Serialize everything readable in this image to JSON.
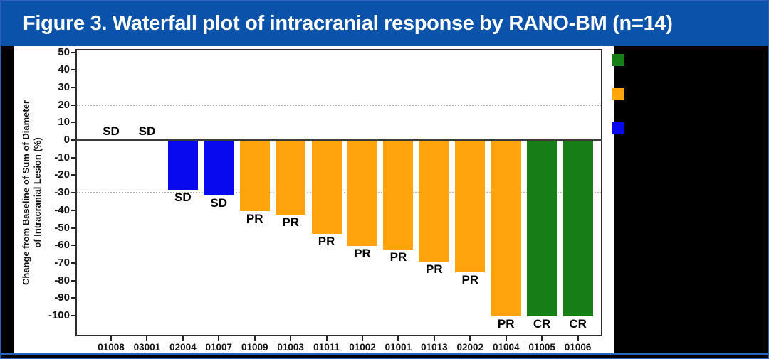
{
  "chart_data": {
    "type": "bar",
    "title": "Figure 3. Waterfall plot of intracranial response by RANO-BM (n=14)",
    "ylabel": "Change from Baseline of Sum of Diameter of Intracranial Lesion (%)",
    "ylabel_lines": [
      "Change from Baseline of Sum of Diameter",
      "of Intracranial Lesion (%)"
    ],
    "xlabel": "",
    "categories": [
      "01008",
      "03001",
      "02004",
      "01007",
      "01009",
      "01003",
      "01011",
      "01002",
      "01001",
      "01013",
      "02002",
      "01004",
      "01005",
      "01006"
    ],
    "values": [
      0,
      0,
      -28,
      -31,
      -40,
      -42,
      -53,
      -60,
      -62,
      -69,
      -75,
      -100,
      -100,
      -100
    ],
    "bar_labels": [
      "SD",
      "SD",
      "SD",
      "SD",
      "PR",
      "PR",
      "PR",
      "PR",
      "PR",
      "PR",
      "PR",
      "PR",
      "CR",
      "CR"
    ],
    "response_colors": {
      "SD": "#0909ef",
      "PR": "#ffa40d",
      "CR": "#177d17"
    },
    "y_ticks": [
      50,
      40,
      30,
      20,
      10,
      0,
      -10,
      -20,
      -30,
      -40,
      -50,
      -60,
      -70,
      -80,
      -90,
      -100
    ],
    "reference_lines_dotted": [
      20,
      -30
    ],
    "ylim": [
      -111.7,
      51.8
    ],
    "grid": "horizontal dotted reference lines at 20 and -30 only",
    "legend_position": "right, text redacted by black box; only color chips visible",
    "legend_chips": [
      {
        "name": "green",
        "color": "#177d17"
      },
      {
        "name": "orange",
        "color": "#ffa40d"
      },
      {
        "name": "blue",
        "color": "#0909ef"
      }
    ]
  },
  "colors": {
    "title_bar": "#0b52ab",
    "slide_border": "#2c62be",
    "backdrop": "#000000",
    "panel": "#ffffff"
  }
}
